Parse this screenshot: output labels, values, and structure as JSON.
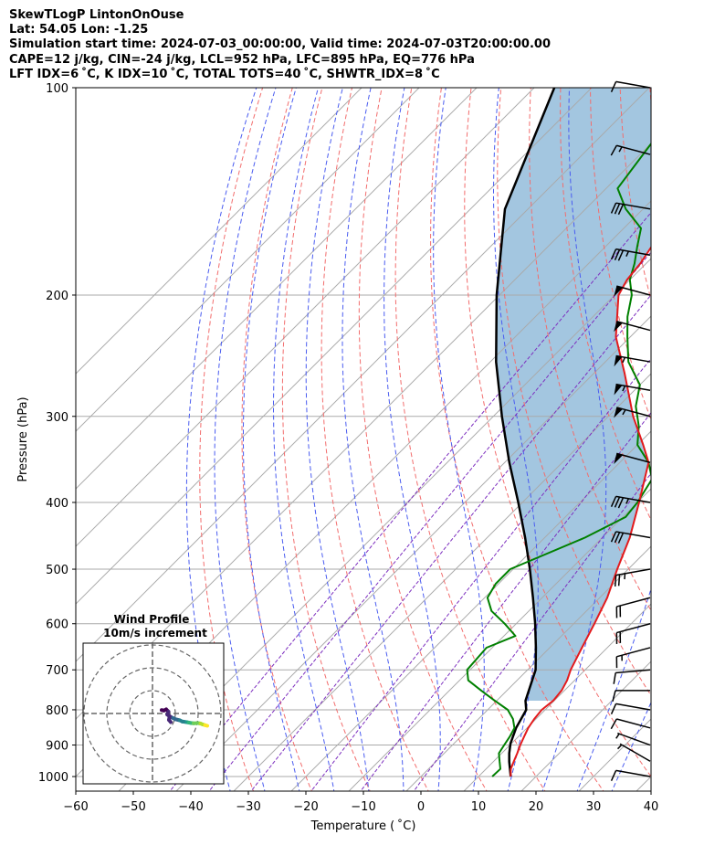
{
  "header": {
    "line1": "SkewTLogP LintonOnOuse",
    "line2": "Lat: 54.05   Lon: -1.25",
    "line3": "Simulation start time: 2024-07-03_00:00:00, Valid time: 2024-07-03T20:00:00.00",
    "line4": "CAPE=12 j/kg, CIN=-24 j/kg, LCL=952 hPa, LFC=895 hPa, EQ=776 hPa",
    "line5": "LFT IDX=6 ˚C, K IDX=10 ˚C, TOTAL TOTS=40 ˚C, SHWTR_IDX=8 ˚C"
  },
  "chart_data": {
    "type": "line",
    "subtype": "skew-t log-p",
    "xlabel": "Temperature ( ˚C)",
    "ylabel": "Pressure (hPa)",
    "xlim": [
      -60,
      40
    ],
    "ylim": [
      1050,
      100
    ],
    "yscale": "log",
    "x_ticks": [
      "−60",
      "−50",
      "−40",
      "−30",
      "−20",
      "−10",
      "0",
      "10",
      "20",
      "30",
      "40"
    ],
    "y_ticks": [
      "100",
      "200",
      "300",
      "400",
      "500",
      "600",
      "700",
      "800",
      "900",
      "1000"
    ],
    "grid": true,
    "colors": {
      "temperature": "#e31a1c",
      "dewpoint": "#008000",
      "parcel": "#000000",
      "cape_fill": "#a3c6e0",
      "dry_adiabat": "#f26d6d",
      "moist_adiabat": "#4a5cf0",
      "mixing_ratio": "#7d2fbf",
      "isotherm": "#aaaaaa"
    },
    "series": [
      {
        "key": "temperature",
        "points": [
          [
            15.6,
            1000
          ],
          [
            14.3,
            975
          ],
          [
            13.5,
            950
          ],
          [
            12.7,
            925
          ],
          [
            11.8,
            900
          ],
          [
            11.0,
            875
          ],
          [
            10.2,
            850
          ],
          [
            9.7,
            825
          ],
          [
            9.4,
            800
          ],
          [
            9.8,
            775
          ],
          [
            9.5,
            750
          ],
          [
            8.7,
            725
          ],
          [
            7.5,
            700
          ],
          [
            5.6,
            650
          ],
          [
            3.6,
            600
          ],
          [
            1.3,
            550
          ],
          [
            -1.9,
            500
          ],
          [
            -5.2,
            450
          ],
          [
            -9.7,
            400
          ],
          [
            -15.0,
            350
          ],
          [
            -19.0,
            330
          ],
          [
            -25.7,
            300
          ],
          [
            -34.6,
            260
          ],
          [
            -42.5,
            230
          ],
          [
            -49.3,
            200
          ],
          [
            -50.5,
            190
          ],
          [
            -51.0,
            180
          ],
          [
            -52.0,
            170
          ],
          [
            -54.8,
            160
          ],
          [
            -58.0,
            150
          ],
          [
            -60.5,
            140
          ],
          [
            -62.8,
            130
          ],
          [
            -65.0,
            120
          ],
          [
            -67.5,
            110
          ],
          [
            -70.0,
            100
          ]
        ]
      },
      {
        "key": "dewpoint",
        "points": [
          [
            12.4,
            1000
          ],
          [
            12.5,
            975
          ],
          [
            11.0,
            950
          ],
          [
            9.5,
            925
          ],
          [
            9.0,
            900
          ],
          [
            8.5,
            875
          ],
          [
            7.8,
            850
          ],
          [
            6.0,
            825
          ],
          [
            3.5,
            800
          ],
          [
            -0.5,
            775
          ],
          [
            -4.5,
            750
          ],
          [
            -8.5,
            725
          ],
          [
            -10.5,
            700
          ],
          [
            -11.0,
            650
          ],
          [
            -8.0,
            625
          ],
          [
            -12.0,
            600
          ],
          [
            -16.5,
            575
          ],
          [
            -19.5,
            550
          ],
          [
            -20.5,
            525
          ],
          [
            -20.5,
            500
          ],
          [
            -13.0,
            450
          ],
          [
            -9.5,
            420
          ],
          [
            -10.0,
            400
          ],
          [
            -11.5,
            370
          ],
          [
            -15.0,
            350
          ],
          [
            -20.0,
            330
          ],
          [
            -23.0,
            310
          ],
          [
            -27.0,
            290
          ],
          [
            -30.0,
            270
          ],
          [
            -36.0,
            250
          ],
          [
            -40.5,
            230
          ],
          [
            -44.0,
            215
          ],
          [
            -47.0,
            200
          ],
          [
            -50.0,
            190
          ],
          [
            -52.0,
            180
          ],
          [
            -54.5,
            170
          ],
          [
            -57.0,
            160
          ],
          [
            -63.0,
            150
          ],
          [
            -68.0,
            140
          ],
          [
            -70.0,
            120
          ],
          [
            -75.0,
            100
          ]
        ]
      },
      {
        "key": "parcel",
        "points": [
          [
            15.6,
            1000
          ],
          [
            12.8,
            952
          ],
          [
            11.3,
            925
          ],
          [
            9.8,
            895
          ],
          [
            8.1,
            850
          ],
          [
            6.7,
            800
          ],
          [
            5.0,
            776
          ],
          [
            1.4,
            700
          ],
          [
            -2.4,
            650
          ],
          [
            -6.7,
            600
          ],
          [
            -11.6,
            550
          ],
          [
            -17.1,
            500
          ],
          [
            -23.4,
            450
          ],
          [
            -30.7,
            400
          ],
          [
            -39.2,
            350
          ],
          [
            -48.5,
            300
          ],
          [
            -59.0,
            250
          ],
          [
            -70.5,
            200
          ],
          [
            -84.0,
            150
          ],
          [
            -96.5,
            100
          ]
        ]
      }
    ],
    "cape_shading": "between parcel and temperature, 776 hPa to 100 hPa",
    "wind_barbs": {
      "levels_hPa": [
        100,
        125,
        150,
        175,
        200,
        225,
        250,
        275,
        300,
        350,
        400,
        450,
        500,
        550,
        600,
        650,
        700,
        750,
        800,
        850,
        900,
        950,
        1000
      ],
      "speeds_kt": [
        10,
        15,
        30,
        35,
        50,
        50,
        55,
        55,
        55,
        50,
        35,
        30,
        25,
        20,
        20,
        15,
        10,
        10,
        10,
        10,
        5,
        5,
        10
      ],
      "directions_deg": [
        280,
        285,
        280,
        280,
        285,
        285,
        280,
        280,
        285,
        285,
        280,
        280,
        260,
        255,
        255,
        255,
        265,
        270,
        280,
        285,
        290,
        300,
        280
      ]
    },
    "inset": {
      "title": "Wind Profile",
      "subtitle": "10m/s increment",
      "rings_ms": [
        10,
        20,
        30
      ],
      "colormap": "viridis",
      "hodograph_uv": [
        [
          8,
          -1.5
        ],
        [
          9,
          -2
        ],
        [
          10,
          -2.5
        ],
        [
          12,
          -3
        ],
        [
          13,
          -3.5
        ],
        [
          15,
          -3.8
        ],
        [
          16,
          -4
        ],
        [
          17,
          -4.2
        ],
        [
          18,
          -4.3
        ],
        [
          20,
          -4.2
        ],
        [
          21,
          -4.4
        ],
        [
          22,
          -4.8
        ],
        [
          23,
          -5.1
        ],
        [
          24,
          -5.4
        ]
      ],
      "hodograph_uv_lower": [
        [
          4,
          1.5
        ],
        [
          5,
          1.3
        ],
        [
          6,
          1.8
        ],
        [
          7,
          0.8
        ],
        [
          6.5,
          -0.5
        ],
        [
          7.5,
          -1.2
        ],
        [
          7.2,
          -2.8
        ],
        [
          8,
          -3.8
        ]
      ]
    }
  }
}
